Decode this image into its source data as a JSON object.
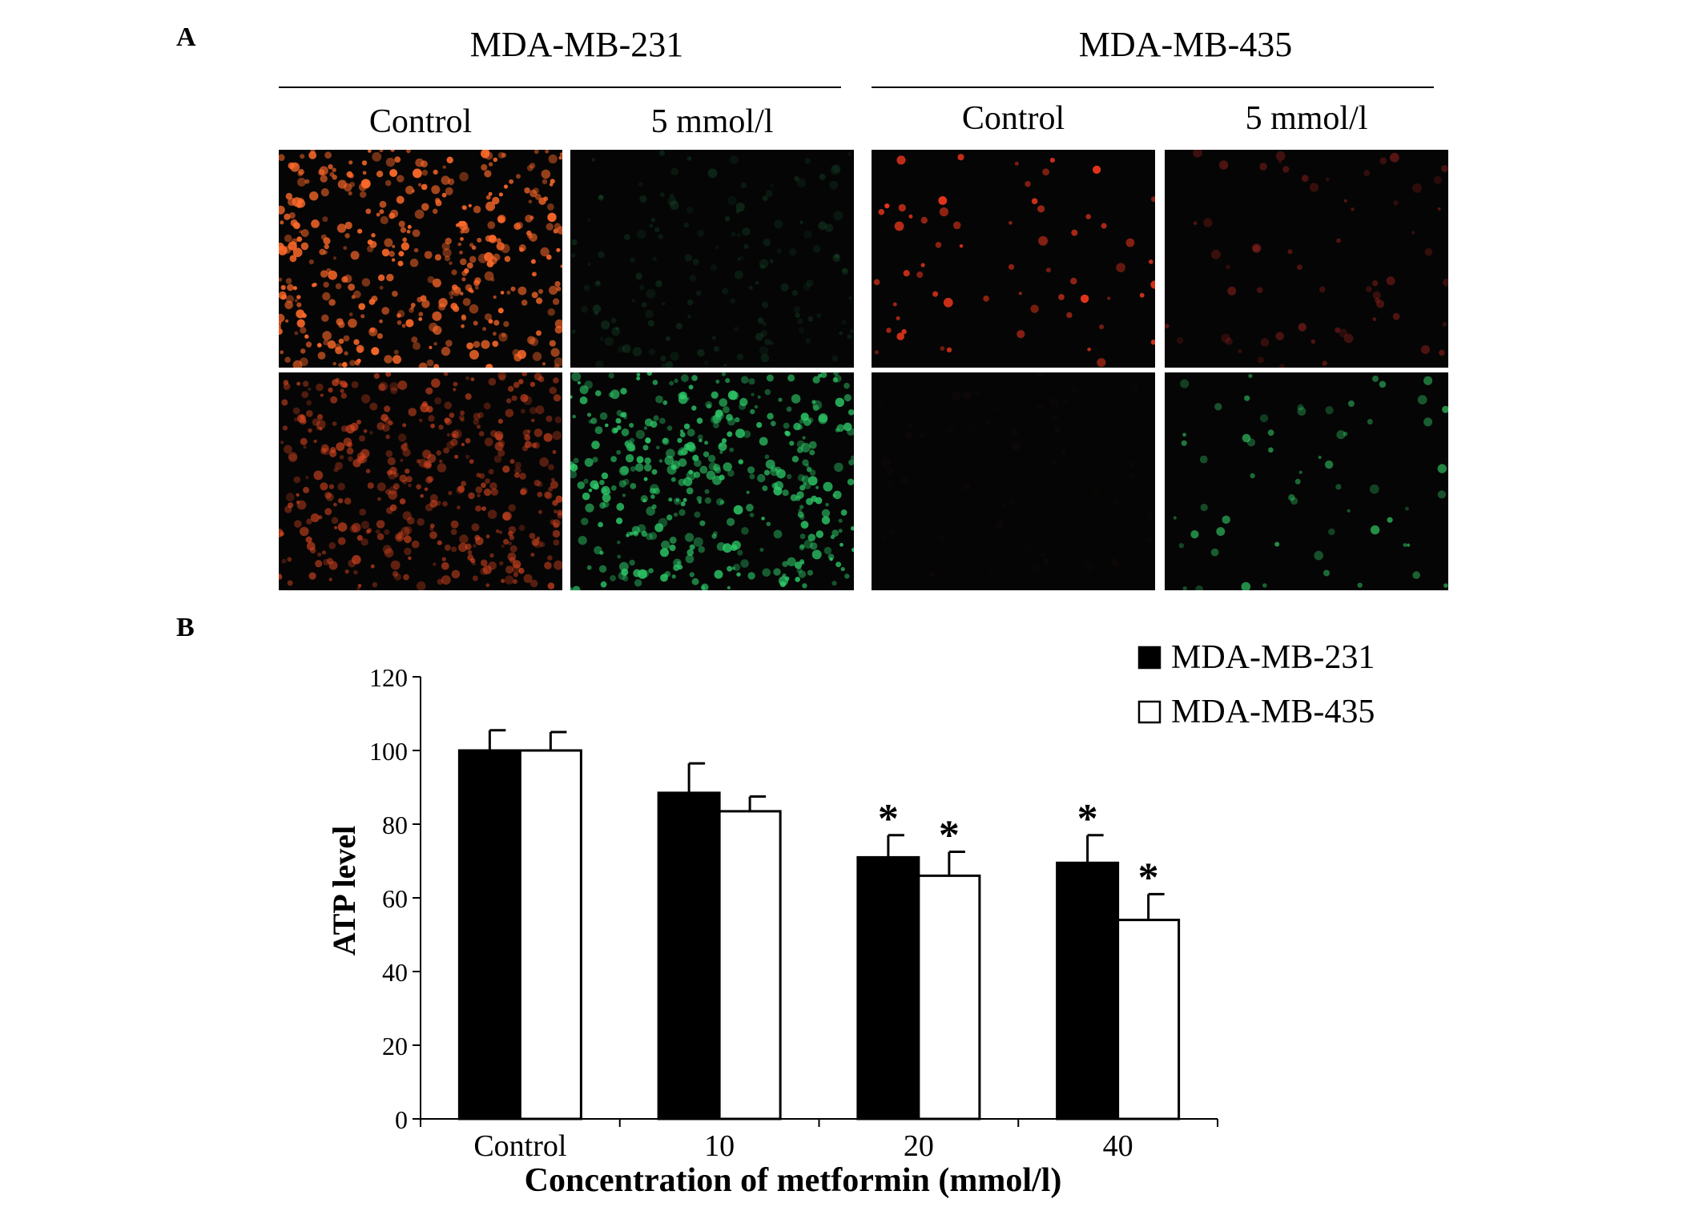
{
  "panel_a": {
    "letter": "A",
    "groups": [
      {
        "title": "MDA-MB-231",
        "conditions": [
          "Control",
          "5 mmol/l"
        ]
      },
      {
        "title": "MDA-MB-435",
        "conditions": [
          "Control",
          "5 mmol/l"
        ]
      }
    ],
    "images": [
      {
        "cell_line": "MDA-MB-231",
        "condition": "Control",
        "row": 1,
        "stain_color": "#ff6a2a",
        "density": "high",
        "intensity": 0.95
      },
      {
        "cell_line": "MDA-MB-231",
        "condition": "5 mmol/l",
        "row": 1,
        "stain_color": "#2a9a55",
        "density": "medium",
        "intensity": 0.2
      },
      {
        "cell_line": "MDA-MB-435",
        "condition": "Control",
        "row": 1,
        "stain_color": "#ff3a1e",
        "density": "low",
        "intensity": 0.9
      },
      {
        "cell_line": "MDA-MB-435",
        "condition": "5 mmol/l",
        "row": 1,
        "stain_color": "#c02a24",
        "density": "low",
        "intensity": 0.45
      },
      {
        "cell_line": "MDA-MB-231",
        "condition": "Control",
        "row": 2,
        "stain_color": "#e24a22",
        "density": "high",
        "intensity": 0.65
      },
      {
        "cell_line": "MDA-MB-231",
        "condition": "5 mmol/l",
        "row": 2,
        "stain_color": "#2ecc6a",
        "density": "high",
        "intensity": 0.85
      },
      {
        "cell_line": "MDA-MB-435",
        "condition": "Control",
        "row": 2,
        "stain_color": "#3a1a14",
        "density": "low",
        "intensity": 0.15
      },
      {
        "cell_line": "MDA-MB-435",
        "condition": "5 mmol/l",
        "row": 2,
        "stain_color": "#33cc66",
        "density": "low",
        "intensity": 0.7
      }
    ]
  },
  "panel_b": {
    "letter": "B",
    "chart_data": {
      "type": "bar",
      "categories": [
        "Control",
        "10",
        "20",
        "40"
      ],
      "series": [
        {
          "name": "MDA-MB-231",
          "color": "#000000",
          "values": [
            100,
            88.5,
            71,
            69.5
          ],
          "errors": [
            5.5,
            8,
            6,
            7.5
          ],
          "significance": [
            "",
            "",
            "*",
            "*"
          ]
        },
        {
          "name": "MDA-MB-435",
          "color": "#ffffff",
          "values": [
            100,
            83.5,
            66,
            54
          ],
          "errors": [
            5,
            4,
            6.5,
            7
          ],
          "significance": [
            "",
            "",
            "*",
            "*"
          ]
        }
      ],
      "xlabel": "Concentration of metformin (mmol/l)",
      "ylabel": "ATP level",
      "ylim": [
        0,
        120
      ],
      "yticks": [
        0,
        20,
        40,
        60,
        80,
        100,
        120
      ],
      "legend_position": "top-right",
      "grid": false
    }
  }
}
